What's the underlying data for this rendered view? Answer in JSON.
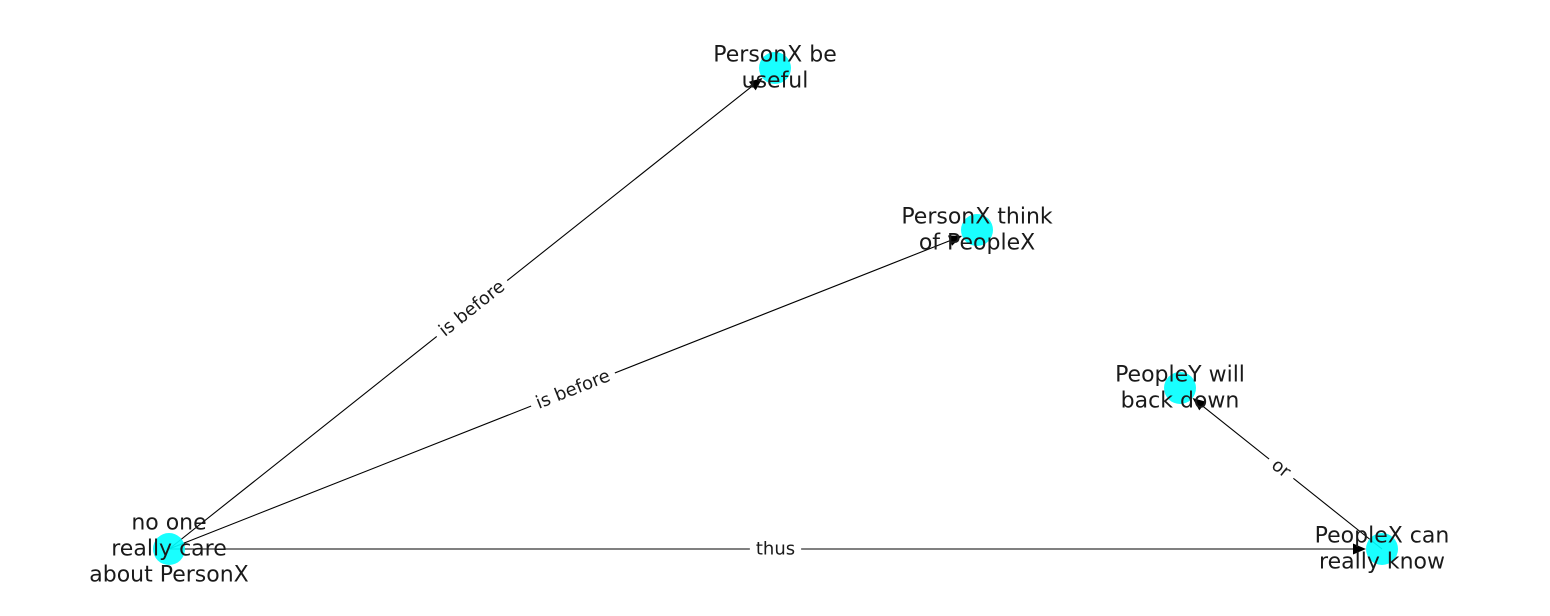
{
  "colors": {
    "node_fill": "#00ffff",
    "edge": "#000000",
    "text": "#1a1a1a",
    "background": "#ffffff"
  },
  "nodes": [
    {
      "id": "n0",
      "lines": [
        "no one",
        "really care",
        "about PersonX"
      ]
    },
    {
      "id": "n1",
      "lines": [
        "PersonX be",
        "useful"
      ]
    },
    {
      "id": "n2",
      "lines": [
        "PersonX think",
        "of PeopleX"
      ]
    },
    {
      "id": "n3",
      "lines": [
        "PeopleY will",
        "back down"
      ]
    },
    {
      "id": "n4",
      "lines": [
        "PeopleX can",
        "really know"
      ]
    }
  ],
  "edges": [
    {
      "id": "e0",
      "source": "n0",
      "target": "n1",
      "label": "is before"
    },
    {
      "id": "e1",
      "source": "n0",
      "target": "n2",
      "label": "is before"
    },
    {
      "id": "e2",
      "source": "n0",
      "target": "n4",
      "label": "thus"
    },
    {
      "id": "e3",
      "source": "n4",
      "target": "n3",
      "label": "or"
    }
  ]
}
